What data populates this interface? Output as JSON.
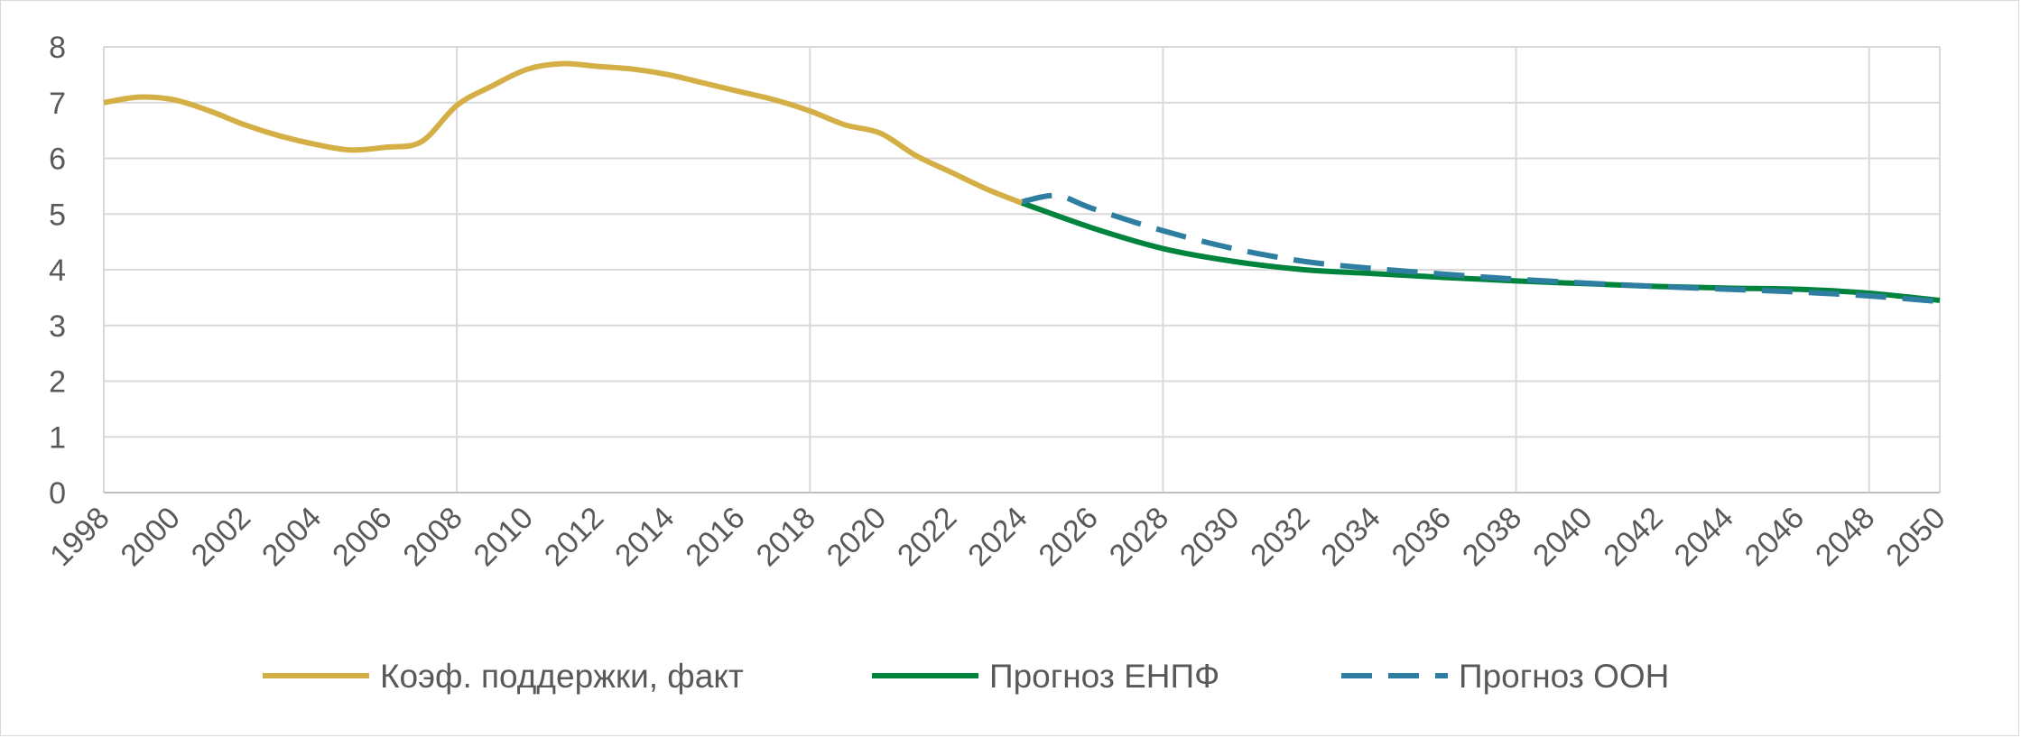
{
  "chart_data": {
    "type": "line",
    "title": "",
    "xlabel": "",
    "ylabel": "",
    "xlim": [
      1998,
      2050
    ],
    "ylim": [
      0,
      8
    ],
    "y_ticks": [
      "0",
      "1",
      "2",
      "3",
      "4",
      "5",
      "6",
      "7",
      "8"
    ],
    "x_ticks": [
      "1998",
      "2000",
      "2002",
      "2004",
      "2006",
      "2008",
      "2010",
      "2012",
      "2014",
      "2016",
      "2018",
      "2020",
      "2022",
      "2024",
      "2026",
      "2028",
      "2030",
      "2032",
      "2034",
      "2036",
      "2038",
      "2040",
      "2042",
      "2044",
      "2046",
      "2048",
      "2050"
    ],
    "grid": true,
    "legend_position": "bottom",
    "series": [
      {
        "name": "Коэф. поддержки, факт",
        "color": "#d4af45",
        "style": "solid",
        "x": [
          1998,
          1999,
          2000,
          2001,
          2002,
          2003,
          2004,
          2005,
          2006,
          2007,
          2008,
          2009,
          2010,
          2011,
          2012,
          2013,
          2014,
          2015,
          2016,
          2017,
          2018,
          2019,
          2020,
          2021,
          2022,
          2023,
          2024
        ],
        "y": [
          7.0,
          7.1,
          7.05,
          6.85,
          6.6,
          6.4,
          6.25,
          6.15,
          6.2,
          6.3,
          6.95,
          7.3,
          7.6,
          7.7,
          7.65,
          7.6,
          7.5,
          7.35,
          7.2,
          7.05,
          6.85,
          6.6,
          6.45,
          6.05,
          5.75,
          5.45,
          5.2
        ]
      },
      {
        "name": "Прогноз ЕНПФ",
        "color": "#00843d",
        "style": "solid",
        "x": [
          2024,
          2026,
          2028,
          2030,
          2032,
          2034,
          2036,
          2038,
          2040,
          2042,
          2044,
          2046,
          2048,
          2050
        ],
        "y": [
          5.2,
          4.75,
          4.38,
          4.15,
          4.0,
          3.93,
          3.86,
          3.8,
          3.75,
          3.7,
          3.67,
          3.65,
          3.58,
          3.45
        ]
      },
      {
        "name": "Прогноз ООН",
        "color": "#2e7ea1",
        "style": "dashed",
        "x": [
          2024,
          2025,
          2026,
          2028,
          2030,
          2032,
          2034,
          2036,
          2038,
          2040,
          2042,
          2044,
          2046,
          2048,
          2050
        ],
        "y": [
          5.22,
          5.33,
          5.1,
          4.7,
          4.38,
          4.15,
          4.02,
          3.92,
          3.83,
          3.76,
          3.7,
          3.65,
          3.6,
          3.53,
          3.43
        ]
      }
    ]
  }
}
